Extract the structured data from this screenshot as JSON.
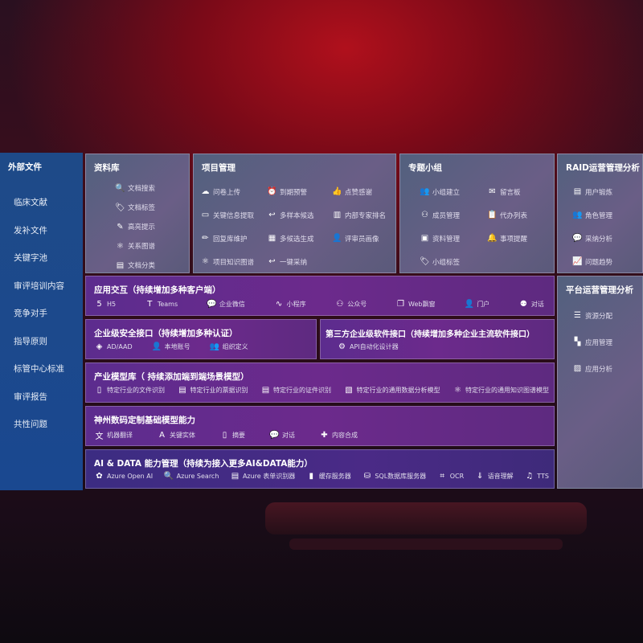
{
  "sidebar": {
    "title": "外部文件",
    "items": [
      "临床文献",
      "发补文件",
      "关键字池",
      "审评培训内容",
      "竞争对手",
      "指导原则",
      "标管中心标准",
      "审评报告",
      "共性问题"
    ]
  },
  "panels": {
    "library": {
      "title": "资料库",
      "items": [
        {
          "label": "文档搜索",
          "icon": "doc-search-icon"
        },
        {
          "label": "文档标签",
          "icon": "tag-icon"
        },
        {
          "label": "高亮提示",
          "icon": "pen-icon"
        },
        {
          "label": "关系图谱",
          "icon": "graph-icon"
        },
        {
          "label": "文档分类",
          "icon": "doc-category-icon"
        }
      ]
    },
    "project": {
      "title": "项目管理",
      "items": [
        {
          "label": "问卷上传",
          "icon": "cloud-upload-icon"
        },
        {
          "label": "到期预警",
          "icon": "alarm-icon"
        },
        {
          "label": "点赞感谢",
          "icon": "thumbs-up-icon"
        },
        {
          "label": "关键信息提取",
          "icon": "window-icon"
        },
        {
          "label": "多样本候选",
          "icon": "reply-icon"
        },
        {
          "label": "内部专家排名",
          "icon": "ranking-icon"
        },
        {
          "label": "回复库维护",
          "icon": "edit-icon"
        },
        {
          "label": "多候选生成",
          "icon": "puzzle-icon"
        },
        {
          "label": "评审员画像",
          "icon": "user-icon"
        },
        {
          "label": "项目知识图谱",
          "icon": "graph-icon"
        },
        {
          "label": "一键采纳",
          "icon": "reply-icon"
        }
      ]
    },
    "group": {
      "title": "专题小组",
      "items": [
        {
          "label": "小组建立",
          "icon": "group-icon"
        },
        {
          "label": "留言板",
          "icon": "bbs-icon"
        },
        {
          "label": "成员管理",
          "icon": "user-add-icon"
        },
        {
          "label": "代办列表",
          "icon": "clipboard-icon"
        },
        {
          "label": "资料管理",
          "icon": "folder-icon"
        },
        {
          "label": "事项提醒",
          "icon": "bell-icon"
        },
        {
          "label": "小组标签",
          "icon": "tag-icon"
        }
      ]
    },
    "raid": {
      "title": "RAID运营管理分析",
      "items": [
        {
          "label": "用户锻炼",
          "icon": "id-card-icon"
        },
        {
          "label": "角色管理",
          "icon": "users-icon"
        },
        {
          "label": "采纳分析",
          "icon": "qa-icon"
        },
        {
          "label": "问题趋势",
          "icon": "trend-icon"
        }
      ]
    },
    "platform": {
      "title": "平台运营管理分析",
      "items": [
        {
          "label": "资源分配",
          "icon": "checklist-icon"
        },
        {
          "label": "应用管理",
          "icon": "apps-icon"
        },
        {
          "label": "应用分析",
          "icon": "analysis-icon"
        }
      ]
    },
    "interaction": {
      "title": "应用交互（持续增加多种客户端）",
      "items": [
        {
          "label": "H5",
          "icon": "html5-icon"
        },
        {
          "label": "Teams",
          "icon": "teams-icon"
        },
        {
          "label": "企业微信",
          "icon": "wechat-work-icon"
        },
        {
          "label": "小程序",
          "icon": "miniprogram-icon"
        },
        {
          "label": "公众号",
          "icon": "official-account-icon"
        },
        {
          "label": "Web飘窗",
          "icon": "web-window-icon"
        },
        {
          "label": "门户",
          "icon": "portal-icon"
        },
        {
          "label": "对话",
          "icon": "chat-users-icon"
        }
      ]
    },
    "security": {
      "title": "企业级安全接口（持续增加多种认证）",
      "items": [
        {
          "label": "AD/AAD",
          "icon": "ad-icon"
        },
        {
          "label": "本地账号",
          "icon": "local-account-icon"
        },
        {
          "label": "组织定义",
          "icon": "org-icon"
        }
      ]
    },
    "thirdparty": {
      "title": "第三方企业级软件接口（持续增加多种企业主流软件接口）",
      "items": [
        {
          "label": "API自动化设计器",
          "icon": "gear-icon"
        }
      ]
    },
    "industry": {
      "title": "产业模型库（ 持续添加端到端场景模型）",
      "items": [
        {
          "label": "特定行业的文件识别",
          "icon": "file-icon"
        },
        {
          "label": "特定行业的票据识别",
          "icon": "receipt-icon"
        },
        {
          "label": "特定行业的证件识别",
          "icon": "id-card-icon"
        },
        {
          "label": "特定行业的通用数据分析模型",
          "icon": "chart-icon"
        },
        {
          "label": "特定行业的通用知识图谱模型",
          "icon": "graph-icon"
        }
      ]
    },
    "base": {
      "title": "神州数码定制基础模型能力",
      "items": [
        {
          "label": "机器翻译",
          "icon": "translate-icon"
        },
        {
          "label": "关键实体",
          "icon": "entity-icon"
        },
        {
          "label": "摘要",
          "icon": "summary-icon"
        },
        {
          "label": "对话",
          "icon": "chat-icon"
        },
        {
          "label": "内容合成",
          "icon": "compose-icon"
        }
      ]
    },
    "aidata": {
      "title": "AI & DATA 能力管理（持续为接入更多AI&DATA能力）",
      "items": [
        {
          "label": "Azure Open AI",
          "icon": "openai-icon"
        },
        {
          "label": "Azure Search",
          "icon": "search-icon"
        },
        {
          "label": "Azure 表单识别器",
          "icon": "form-icon"
        },
        {
          "label": "缓存服务器",
          "icon": "cache-icon"
        },
        {
          "label": "SQL数据库服务器",
          "icon": "database-icon"
        },
        {
          "label": "OCR",
          "icon": "ocr-icon"
        },
        {
          "label": "语音理解",
          "icon": "speech-icon"
        },
        {
          "label": "TTS",
          "icon": "tts-icon"
        }
      ]
    }
  },
  "colors": {
    "sidebar": "#1e4a88",
    "gray_panel": "#55607e",
    "purple_panel": "#622b8c",
    "dark_panel": "#3e2a7a",
    "background_glow": "#b0101c"
  }
}
